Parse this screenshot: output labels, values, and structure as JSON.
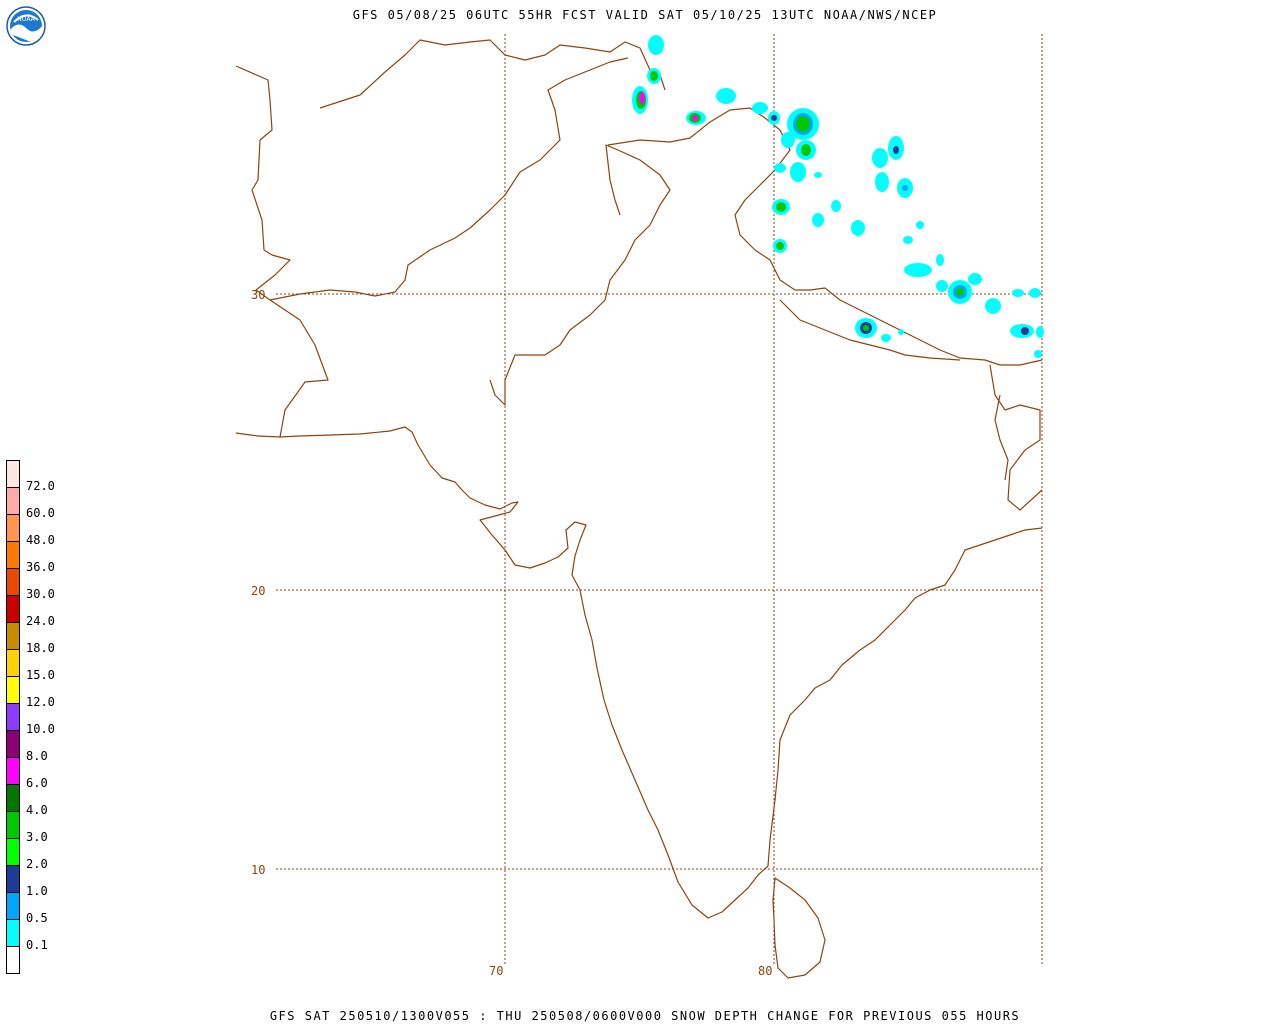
{
  "header": {
    "title": "GFS 05/08/25 06UTC 55HR FCST VALID SAT 05/10/25 13UTC NOAA/NWS/NCEP",
    "logo_text": "NOAA"
  },
  "footer": {
    "text": "GFS SAT 250510/1300V055 : THU 250508/0600V000 SNOW DEPTH CHANGE FOR PREVIOUS 055 HOURS"
  },
  "map": {
    "region": "South Asia",
    "lat_labels": [
      "30",
      "20",
      "10"
    ],
    "lon_labels": [
      "70",
      "80"
    ],
    "colors": {
      "coastline": "#8b4513",
      "grid": "#8b4513"
    }
  },
  "legend": {
    "entries": [
      {
        "label": "",
        "color": "#ffffff"
      },
      {
        "label": "0.1",
        "color": "#00ffff"
      },
      {
        "label": "0.5",
        "color": "#00a5ff"
      },
      {
        "label": "1.0",
        "color": "#1e3c96"
      },
      {
        "label": "2.0",
        "color": "#00ff00"
      },
      {
        "label": "3.0",
        "color": "#00c800"
      },
      {
        "label": "4.0",
        "color": "#007800"
      },
      {
        "label": "6.0",
        "color": "#ff00ff"
      },
      {
        "label": "8.0",
        "color": "#8c0073"
      },
      {
        "label": "10.0",
        "color": "#8c3cff"
      },
      {
        "label": "12.0",
        "color": "#ffff00"
      },
      {
        "label": "15.0",
        "color": "#ffd200"
      },
      {
        "label": "18.0",
        "color": "#c88c00"
      },
      {
        "label": "24.0",
        "color": "#c80000"
      },
      {
        "label": "30.0",
        "color": "#e64b00"
      },
      {
        "label": "36.0",
        "color": "#ff7800"
      },
      {
        "label": "48.0",
        "color": "#ff9650"
      },
      {
        "label": "60.0",
        "color": "#ffaaaa"
      },
      {
        "label": "72.0",
        "color": "#ffe6e6"
      }
    ]
  }
}
